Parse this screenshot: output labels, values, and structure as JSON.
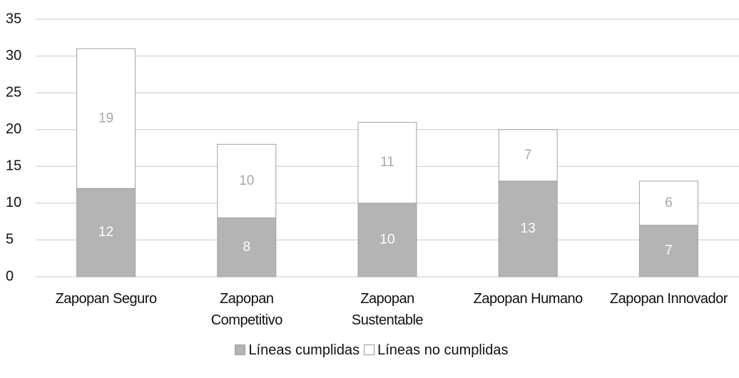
{
  "chart_data": {
    "type": "stacked_bar",
    "categories": [
      "Zapopan Seguro",
      "Zapopan Competitivo",
      "Zapopan Sustentable",
      "Zapopan Humano",
      "Zapopan Innovador"
    ],
    "series": [
      {
        "name": "Líneas cumplidas",
        "color": "#b4b4b4",
        "values": [
          12,
          8,
          10,
          13,
          7
        ]
      },
      {
        "name": "Líneas no cumplidas",
        "color": "#ffffff",
        "values": [
          19,
          10,
          11,
          7,
          6
        ]
      }
    ],
    "ylim": [
      0,
      35
    ],
    "yticks": [
      0,
      5,
      10,
      15,
      20,
      25,
      30,
      35
    ],
    "grid": true,
    "legend": "bottom"
  }
}
